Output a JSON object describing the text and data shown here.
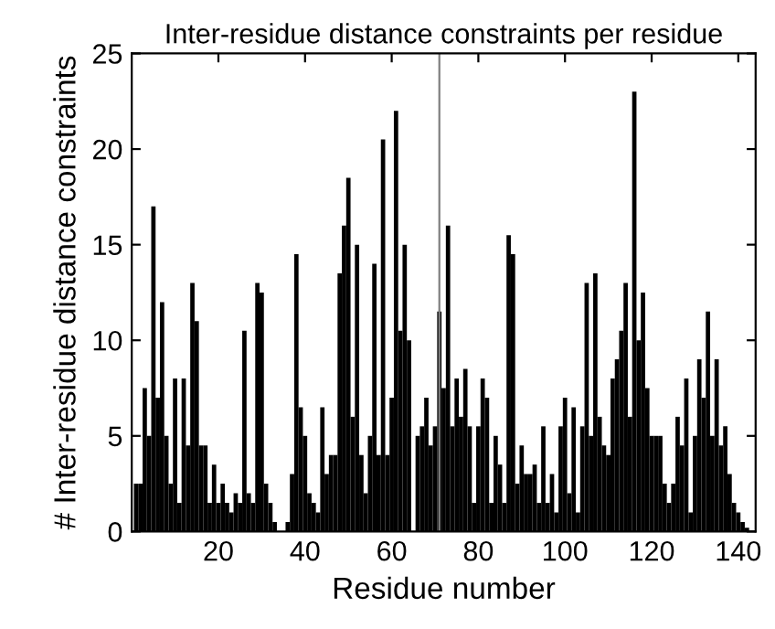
{
  "chart_data": {
    "type": "bar",
    "title": "Inter-residue distance constraints per residue",
    "xlabel": "Residue number",
    "ylabel": "# Inter-residue distance constraints",
    "x": [
      1,
      2,
      3,
      4,
      5,
      6,
      7,
      8,
      9,
      10,
      11,
      12,
      13,
      14,
      15,
      16,
      17,
      18,
      19,
      20,
      21,
      22,
      23,
      24,
      25,
      26,
      27,
      28,
      29,
      30,
      31,
      32,
      33,
      34,
      35,
      36,
      37,
      38,
      39,
      40,
      41,
      42,
      43,
      44,
      45,
      46,
      47,
      48,
      49,
      50,
      51,
      52,
      53,
      54,
      55,
      56,
      57,
      58,
      59,
      60,
      61,
      62,
      63,
      64,
      65,
      66,
      67,
      68,
      69,
      70,
      71,
      72,
      73,
      74,
      75,
      76,
      77,
      78,
      79,
      80,
      81,
      82,
      83,
      84,
      85,
      86,
      87,
      88,
      89,
      90,
      91,
      92,
      93,
      94,
      95,
      96,
      97,
      98,
      99,
      100,
      101,
      102,
      103,
      104,
      105,
      106,
      107,
      108,
      109,
      110,
      111,
      112,
      113,
      114,
      115,
      116,
      117,
      118,
      119,
      120,
      121,
      122,
      123,
      124,
      125,
      126,
      127,
      128,
      129,
      130,
      131,
      132,
      133,
      134,
      135,
      136,
      137,
      138,
      139,
      140,
      141,
      142
    ],
    "values": [
      2.5,
      2.5,
      7.5,
      5,
      17,
      7,
      12,
      5,
      2.5,
      8,
      1.5,
      8,
      4.5,
      13,
      11,
      4.5,
      4.5,
      1.5,
      3.5,
      1.5,
      2.5,
      1.5,
      1,
      2,
      1.5,
      10.5,
      2,
      1.5,
      13,
      12.5,
      2.5,
      1.5,
      0.5,
      0,
      0,
      0.5,
      3,
      14.5,
      6.5,
      5,
      2,
      1.5,
      1,
      6.5,
      3,
      4,
      4,
      13.5,
      16,
      18.5,
      6,
      15,
      4,
      2,
      5,
      14,
      4,
      20.5,
      4,
      7,
      22,
      10.5,
      15,
      10,
      0,
      5,
      5.5,
      7,
      4.5,
      5.5,
      11.5,
      7.5,
      16,
      5.5,
      8,
      6,
      8.5,
      5.5,
      1.5,
      5.5,
      8,
      7,
      1.5,
      5,
      3.5,
      1.5,
      15.5,
      14.5,
      2.5,
      4.5,
      3,
      3,
      3.5,
      1.5,
      5.5,
      1.5,
      3,
      1,
      5.5,
      7,
      2,
      6.5,
      1,
      5.5,
      13,
      5,
      13.5,
      6,
      4.5,
      4,
      8,
      9,
      10.5,
      13,
      6,
      23,
      10,
      12.5,
      7.5,
      5,
      5,
      5,
      2.5,
      1.5,
      2.5,
      6,
      4.5,
      8,
      1,
      5,
      9,
      7,
      11.5,
      5,
      9,
      4.5,
      5.5,
      3,
      1.5,
      1,
      0.5,
      0.2
    ],
    "color": "#000000",
    "xlim": [
      0,
      144
    ],
    "ylim": [
      0,
      25
    ],
    "xticks": [
      20,
      40,
      60,
      80,
      100,
      120,
      140
    ],
    "yticks": [
      0,
      5,
      10,
      15,
      20,
      25
    ],
    "ref_lines": [
      {
        "axis": "x",
        "value": 71,
        "color": "#808080"
      }
    ],
    "grid": false
  }
}
